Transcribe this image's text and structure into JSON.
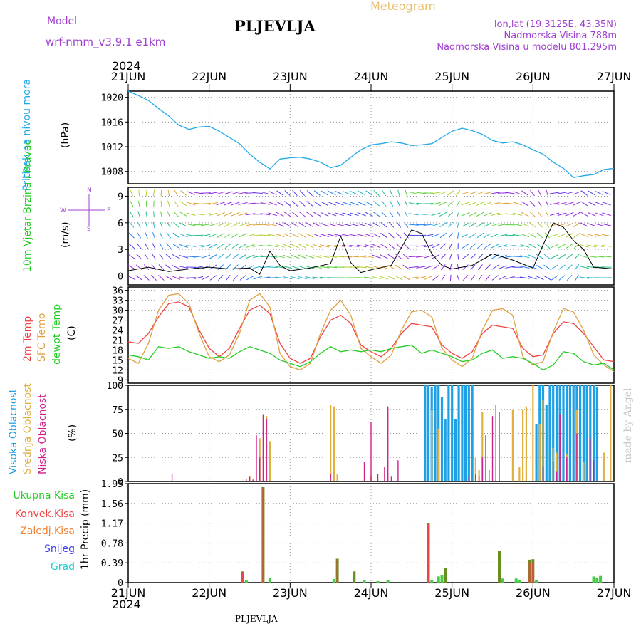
{
  "header": {
    "model_label": "Model",
    "model_name": "wrf-nmm_v3.9.1 e1km",
    "title": "PLJEVLJA",
    "chart_type": "Meteogram",
    "lonlat": "lon,lat (19.3125E, 43.35N)",
    "elevation": "Nadmorska Visina 788m",
    "model_elevation": "Nadmorska Visina u modelu 801.295m",
    "year_top": "2024",
    "year_bottom": "2024",
    "footer_title": "PLJEVLJA",
    "credit": "made by Angel"
  },
  "colors": {
    "pressure": "#22a9e8",
    "t2m": "#ef4444",
    "sfc": "#e0a040",
    "dewpt": "#22cc22",
    "high_cloud": "#1ea0e6",
    "mid_cloud": "#e0b040",
    "low_cloud": "#d0208a",
    "total_precip": "#44cc44",
    "conv_precip": "#ee4444",
    "frozen_precip": "#f08030",
    "snow": "#4040ee",
    "graupel": "#22cccc",
    "header_violet": "#a040d0",
    "header_gold": "#e8c070"
  },
  "chart_data": [
    {
      "type": "line",
      "id": "pressure",
      "ylabel": "Pritisak na nivou mora",
      "unit": "(hPa)",
      "x_ticks": [
        "21JUN",
        "22JUN",
        "23JUN",
        "24JUN",
        "25JUN",
        "26JUN",
        "27JUN"
      ],
      "ylim": [
        1006,
        1021
      ],
      "yticks": [
        1008,
        1012,
        1016,
        1020
      ],
      "x_hours": [
        0,
        3,
        6,
        9,
        12,
        15,
        18,
        21,
        24,
        27,
        30,
        33,
        36,
        39,
        42,
        45,
        48,
        51,
        54,
        57,
        60,
        63,
        66,
        69,
        72,
        75,
        78,
        81,
        84,
        87,
        90,
        93,
        96,
        99,
        102,
        105,
        108,
        111,
        114,
        117,
        120,
        123,
        126,
        129,
        132,
        135,
        138,
        141,
        144
      ],
      "series": [
        {
          "values": [
            1021,
            1020.3,
            1019.5,
            1018.2,
            1017,
            1015.5,
            1014.8,
            1015.2,
            1015.3,
            1014.5,
            1013.5,
            1012.5,
            1010.8,
            1009.5,
            1008.4,
            1010,
            1010.2,
            1010.3,
            1010,
            1009.5,
            1008.6,
            1009,
            1010.3,
            1011.5,
            1012.3,
            1012.5,
            1012.8,
            1012.6,
            1012.2,
            1012.3,
            1012.5,
            1013.5,
            1014.5,
            1015,
            1014.6,
            1014,
            1013,
            1012.6,
            1012.8,
            1012.3,
            1011.5,
            1010.8,
            1009.5,
            1008.5,
            1007,
            1007.3,
            1007.5,
            1008.3,
            1008.5
          ]
        }
      ]
    },
    {
      "type": "line",
      "id": "wind",
      "ylabel": "10m Vjetar Brzina i Pravac",
      "unit": "(m/s)",
      "ylim": [
        -1,
        10
      ],
      "yticks": [
        0,
        3,
        6,
        9
      ],
      "compass": {
        "n": "N",
        "s": "S",
        "e": "E",
        "w": "W"
      },
      "x_hours": [
        0,
        6,
        12,
        18,
        24,
        30,
        36,
        39,
        42,
        45,
        48,
        54,
        60,
        63,
        66,
        69,
        72,
        78,
        84,
        87,
        90,
        93,
        96,
        102,
        108,
        114,
        120,
        123,
        126,
        129,
        132,
        135,
        138,
        144
      ],
      "series": [
        {
          "name": "speed",
          "values": [
            0.6,
            1.0,
            0.5,
            0.8,
            1.0,
            0.8,
            0.9,
            0.2,
            2.8,
            1.2,
            0.6,
            0.9,
            1.4,
            4.5,
            1.5,
            0.4,
            0.7,
            1.2,
            5.2,
            4.8,
            2.5,
            1.2,
            0.8,
            1.2,
            2.5,
            1.8,
            0.9,
            3.5,
            6.0,
            5.5,
            4.0,
            3.0,
            1.0,
            0.8
          ]
        }
      ]
    },
    {
      "type": "line",
      "id": "temperature",
      "ylabel_lines": [
        "2m Temp",
        "SFC Temp",
        "dewpt Temp"
      ],
      "unit": "(C)",
      "ylim": [
        8,
        37
      ],
      "yticks": [
        9,
        12,
        15,
        18,
        21,
        24,
        27,
        30,
        33,
        36
      ],
      "x_hours": [
        0,
        3,
        6,
        9,
        12,
        15,
        18,
        21,
        24,
        27,
        30,
        33,
        36,
        39,
        42,
        45,
        48,
        51,
        54,
        57,
        60,
        63,
        66,
        69,
        72,
        75,
        78,
        81,
        84,
        87,
        90,
        93,
        96,
        99,
        102,
        105,
        108,
        111,
        114,
        117,
        120,
        123,
        126,
        129,
        132,
        135,
        138,
        141,
        144
      ],
      "series": [
        {
          "name": "2m",
          "values": [
            20.5,
            20,
            23,
            28,
            32,
            32.5,
            31,
            24,
            18.5,
            16,
            18.5,
            24.5,
            30,
            31.5,
            29,
            20,
            15.5,
            14,
            15.5,
            22,
            27,
            28.5,
            26,
            19.5,
            17.5,
            16,
            18.5,
            23,
            26,
            25.5,
            25,
            19.5,
            17,
            15.5,
            17.5,
            23,
            25.5,
            25,
            24.5,
            18.5,
            16,
            16.5,
            23,
            26.5,
            26,
            23,
            19,
            15,
            14.5
          ]
        },
        {
          "name": "SFC",
          "values": [
            15.5,
            14,
            20,
            30,
            34.5,
            35,
            32,
            23,
            16,
            14.5,
            16.5,
            23,
            33,
            35,
            31,
            17,
            13,
            12,
            14,
            23,
            30,
            33,
            28.5,
            18.5,
            16,
            14,
            16.5,
            24,
            29.5,
            30,
            28,
            18.5,
            15,
            13,
            15.5,
            24,
            30,
            30.5,
            28.5,
            16,
            13.5,
            14.5,
            23.5,
            30.5,
            29.5,
            24,
            16.5,
            13.5,
            11.5
          ]
        },
        {
          "name": "dewpt",
          "values": [
            16.5,
            16,
            15,
            19,
            18.5,
            19,
            17.5,
            16.5,
            15.5,
            16,
            15.5,
            17.5,
            19,
            18,
            17,
            15,
            14,
            13,
            14.5,
            17,
            19,
            17.5,
            18,
            17.5,
            18,
            17.5,
            18.5,
            19,
            19.5,
            17,
            18,
            17,
            16,
            14.5,
            15,
            17,
            18,
            15.5,
            16,
            15.5,
            14,
            12,
            13.5,
            17.5,
            17,
            14.5,
            13.5,
            14,
            12
          ]
        }
      ]
    },
    {
      "type": "bar",
      "id": "cloud",
      "ylabel_lines": [
        "Visoka Oblacnost",
        "Srednja Oblacnost",
        "Niska Oblacnost"
      ],
      "unit": "(%)",
      "ylim": [
        0,
        100
      ],
      "yticks": [
        0,
        25,
        50,
        75,
        100
      ],
      "series": [
        {
          "name": "Visoka Oblacnost",
          "x_hours": [
            88,
            89,
            90,
            91,
            92,
            93,
            94,
            95,
            96,
            97,
            98,
            99,
            100,
            101,
            102,
            121,
            122,
            123,
            124,
            125,
            126,
            127,
            128,
            129,
            130,
            131,
            132,
            133,
            134,
            135,
            136,
            137,
            138,
            139
          ],
          "values": [
            100,
            100,
            98,
            100,
            100,
            88,
            65,
            100,
            100,
            65,
            100,
            100,
            100,
            100,
            100,
            60,
            100,
            100,
            80,
            100,
            100,
            100,
            100,
            100,
            100,
            100,
            100,
            100,
            100,
            100,
            100,
            100,
            100,
            98
          ]
        },
        {
          "name": "Srednja Oblacnost",
          "x_hours": [
            36,
            39,
            41,
            42,
            60,
            61,
            62,
            72,
            90,
            92,
            103,
            104,
            105,
            114,
            116,
            117,
            118,
            120,
            122,
            123,
            126,
            127,
            130,
            133,
            135,
            141,
            143
          ],
          "values": [
            5,
            45,
            68,
            42,
            80,
            78,
            8,
            5,
            75,
            55,
            25,
            12,
            72,
            75,
            15,
            75,
            78,
            100,
            60,
            85,
            35,
            30,
            28,
            75,
            20,
            30,
            100
          ]
        },
        {
          "name": "Niska Oblacnost",
          "x_hours": [
            13,
            35,
            36,
            37,
            38,
            39,
            40,
            41,
            60,
            70,
            72,
            74,
            76,
            77,
            78,
            80,
            101,
            103,
            104,
            105,
            106,
            107,
            108,
            109,
            110,
            123,
            126,
            127,
            128,
            130,
            133,
            137,
            138
          ],
          "values": [
            8,
            3,
            5,
            2,
            48,
            25,
            70,
            65,
            8,
            20,
            62,
            8,
            15,
            78,
            5,
            22,
            5,
            8,
            5,
            25,
            48,
            12,
            68,
            80,
            72,
            15,
            20,
            10,
            70,
            25,
            50,
            45,
            22
          ]
        }
      ]
    },
    {
      "type": "bar",
      "id": "precip",
      "ylabel": "1hr Precip",
      "unit": "(mm)",
      "ylim": [
        0,
        1.95
      ],
      "yticks": [
        0,
        0.39,
        0.78,
        1.17,
        1.56,
        1.95
      ],
      "legend": [
        "Ukupna Kisa",
        "Konvek.Kisa",
        "Zaledj.Kisa",
        "Snijeg",
        "Grad"
      ],
      "series": [
        {
          "name": "Ukupna Kisa",
          "x_hours": [
            34,
            35,
            40,
            42,
            61,
            62,
            67,
            70,
            74,
            77,
            89,
            90,
            92,
            93,
            94,
            110,
            111,
            115,
            116,
            119,
            120,
            121,
            138,
            139,
            140
          ],
          "values": [
            0.22,
            0.05,
            1.88,
            0.1,
            0.07,
            0.47,
            0.22,
            0.05,
            0.03,
            0.05,
            1.17,
            0.05,
            0.12,
            0.15,
            0.28,
            0.63,
            0.08,
            0.08,
            0.05,
            0.45,
            0.46,
            0.05,
            0.12,
            0.1,
            0.13
          ]
        },
        {
          "name": "Konvek.Kisa",
          "x_hours": [
            34,
            40,
            62,
            89,
            110,
            119,
            120
          ],
          "values": [
            0.2,
            1.86,
            0.45,
            1.15,
            0.6,
            0.4,
            0.4
          ]
        }
      ]
    }
  ]
}
